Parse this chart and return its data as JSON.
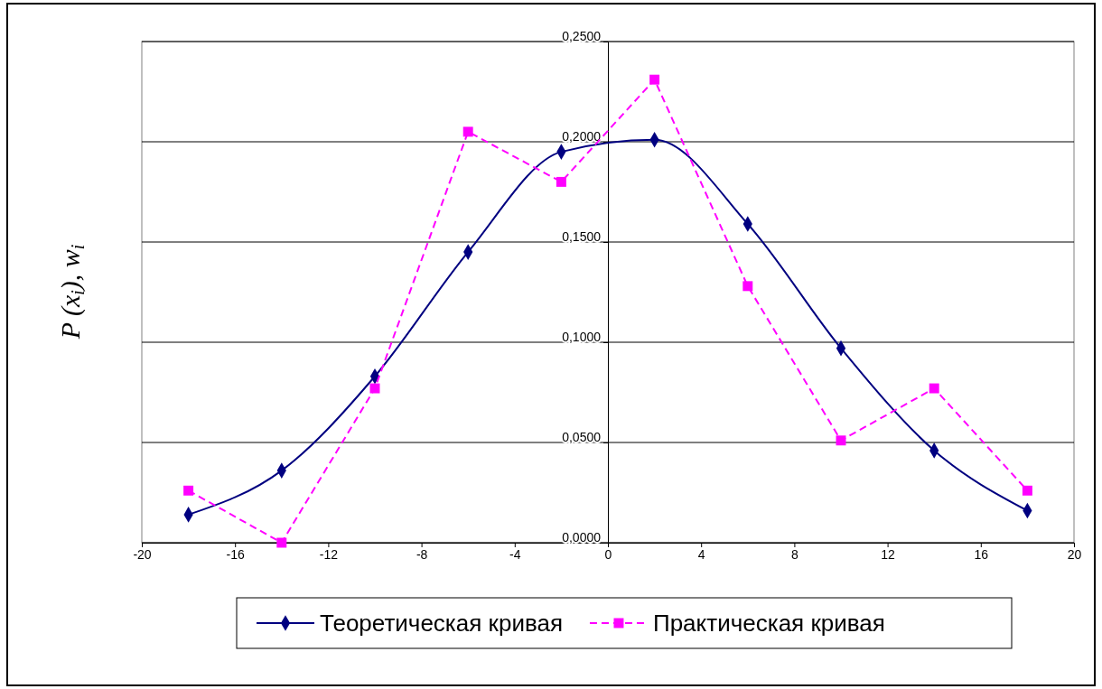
{
  "chart_data": {
    "type": "line",
    "ylabel": "P (x$_{i}$), w$_{i}$",
    "xlim": [
      -20,
      20
    ],
    "xticks": [
      -20,
      -16,
      -12,
      -8,
      -4,
      0,
      4,
      8,
      12,
      16,
      20
    ],
    "ylim": [
      0,
      0.25
    ],
    "yticks": [
      {
        "value": 0,
        "label": "0,0000"
      },
      {
        "value": 0.05,
        "label": "0,0500"
      },
      {
        "value": 0.1,
        "label": "0,1000"
      },
      {
        "value": 0.15,
        "label": "0,1500"
      },
      {
        "value": 0.2,
        "label": "0,2000"
      },
      {
        "value": 0.25,
        "label": "0,2500"
      }
    ],
    "grid": "y",
    "legend": "bottom",
    "series": [
      {
        "name": "Теоретическая кривая",
        "color": "#000080",
        "marker": "diamond",
        "line_style": "solid",
        "x": [
          -18,
          -14,
          -10,
          -6,
          -2,
          2,
          6,
          10,
          14,
          18
        ],
        "values": [
          0.014,
          0.036,
          0.083,
          0.145,
          0.195,
          0.201,
          0.159,
          0.097,
          0.046,
          0.016
        ]
      },
      {
        "name": "Практическая кривая",
        "color": "#ff00ff",
        "marker": "square",
        "line_style": "dashed",
        "x": [
          -18,
          -14,
          -10,
          -6,
          -2,
          2,
          6,
          10,
          14,
          18
        ],
        "values": [
          0.026,
          0,
          0.077,
          0.205,
          0.18,
          0.231,
          0.128,
          0.051,
          0.077,
          0.026
        ]
      }
    ]
  }
}
